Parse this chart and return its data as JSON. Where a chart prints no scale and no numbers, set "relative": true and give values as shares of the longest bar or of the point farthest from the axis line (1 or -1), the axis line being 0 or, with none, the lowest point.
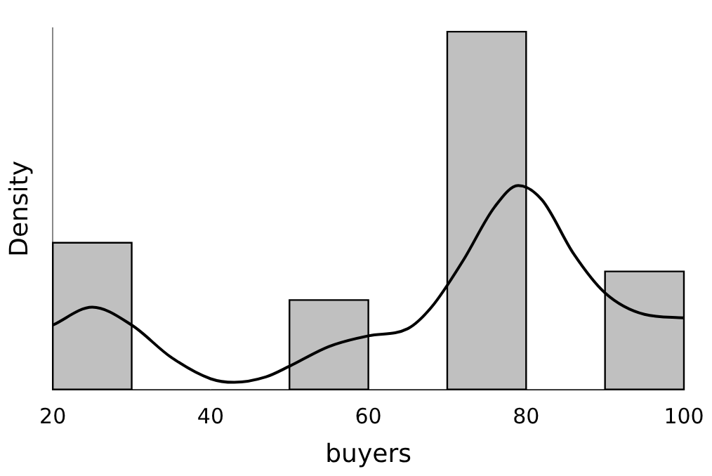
{
  "chart_data": {
    "type": "histogram",
    "relative": true,
    "xlabel": "buyers",
    "ylabel": "Density",
    "bins": [
      20,
      30,
      40,
      50,
      60,
      70,
      80,
      90,
      100
    ],
    "values": [
      0.41,
      0,
      0,
      0.25,
      0,
      1,
      0,
      0.33
    ],
    "color": "#c0c0c0",
    "xlim": [
      20,
      100
    ],
    "xticks": [
      20,
      40,
      60,
      80,
      100
    ],
    "grid": false,
    "legend": false,
    "series": [
      {
        "type": "line",
        "color": "#000000",
        "marker": "none",
        "x": [
          20,
          25,
          30,
          35,
          40,
          43,
          47,
          50,
          55,
          60,
          65,
          68,
          72,
          76,
          79,
          82,
          86,
          90,
          95,
          100
        ],
        "values": [
          0.18,
          0.23,
          0.18,
          0.09,
          0.03,
          0.02,
          0.035,
          0.065,
          0.12,
          0.15,
          0.17,
          0.23,
          0.36,
          0.51,
          0.57,
          0.53,
          0.38,
          0.27,
          0.21,
          0.2
        ]
      }
    ]
  }
}
